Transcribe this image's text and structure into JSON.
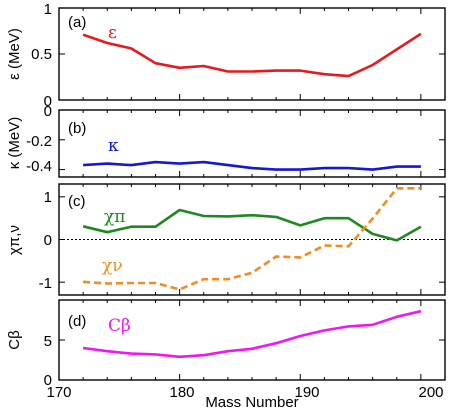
{
  "chart_data": {
    "type": "line",
    "xlabel": "Mass Number",
    "xlim": [
      170,
      202
    ],
    "xticks": [
      "170",
      "180",
      "190",
      "200"
    ],
    "panels": [
      {
        "id": "a",
        "panel_label": "(a)",
        "ylabel": "ε (MeV)",
        "ylim": [
          0,
          1.0
        ],
        "yticks": [
          "0",
          "0.5",
          "1"
        ],
        "series": [
          {
            "name": "ε",
            "color": "#e8191c",
            "dashed": false,
            "x": [
              172,
              174,
              176,
              178,
              180,
              182,
              184,
              186,
              188,
              190,
              192,
              194,
              196,
              198,
              200
            ],
            "y": [
              0.71,
              0.62,
              0.56,
              0.4,
              0.35,
              0.37,
              0.31,
              0.31,
              0.32,
              0.32,
              0.28,
              0.26,
              0.38,
              0.55,
              0.72
            ]
          }
        ]
      },
      {
        "id": "b",
        "panel_label": "(b)",
        "ylabel": "κ (MeV)",
        "ylim": [
          -0.45,
          0
        ],
        "yticks": [
          "0",
          "-0.2",
          "-0.4"
        ],
        "series": [
          {
            "name": "κ",
            "color": "#1517d6",
            "dashed": false,
            "x": [
              172,
              174,
              176,
              178,
              180,
              182,
              184,
              186,
              188,
              190,
              192,
              194,
              196,
              198,
              200
            ],
            "y": [
              -0.37,
              -0.36,
              -0.37,
              -0.35,
              -0.36,
              -0.35,
              -0.37,
              -0.39,
              -0.4,
              -0.4,
              -0.39,
              -0.39,
              -0.4,
              -0.38,
              -0.38
            ]
          }
        ]
      },
      {
        "id": "c",
        "panel_label": "(c)",
        "ylabel": "χπ,ν",
        "ylim": [
          -1.3,
          1.3
        ],
        "yticks": [
          "1",
          "0",
          "-1"
        ],
        "zero_line": true,
        "series": [
          {
            "name": "χπ",
            "color": "#1e8a1e",
            "dashed": false,
            "x": [
              172,
              174,
              176,
              178,
              180,
              182,
              184,
              186,
              188,
              190,
              192,
              194,
              196,
              198,
              200
            ],
            "y": [
              0.31,
              0.17,
              0.3,
              0.3,
              0.69,
              0.55,
              0.54,
              0.57,
              0.53,
              0.33,
              0.5,
              0.5,
              0.13,
              -0.02,
              0.3
            ]
          },
          {
            "name": "χν",
            "color": "#f28c1e",
            "dashed": true,
            "x": [
              172,
              174,
              176,
              178,
              180,
              182,
              184,
              186,
              188,
              190,
              192,
              194,
              196,
              198,
              200
            ],
            "y": [
              -0.99,
              -1.03,
              -1.02,
              -1.02,
              -1.17,
              -0.93,
              -0.93,
              -0.78,
              -0.4,
              -0.42,
              -0.14,
              -0.16,
              0.49,
              1.2,
              1.2
            ]
          }
        ]
      },
      {
        "id": "d",
        "panel_label": "(d)",
        "ylabel": "Cβ",
        "ylim": [
          0,
          10
        ],
        "yticks": [
          "0",
          "5"
        ],
        "series": [
          {
            "name": "Cβ",
            "color": "#f016f0",
            "dashed": false,
            "x": [
              172,
              174,
              176,
              178,
              180,
              182,
              184,
              186,
              188,
              190,
              192,
              194,
              196,
              198,
              200
            ],
            "y": [
              4.0,
              3.6,
              3.3,
              3.2,
              2.9,
              3.1,
              3.6,
              3.9,
              4.6,
              5.5,
              6.2,
              6.7,
              6.9,
              7.9,
              8.6
            ]
          }
        ]
      }
    ]
  }
}
